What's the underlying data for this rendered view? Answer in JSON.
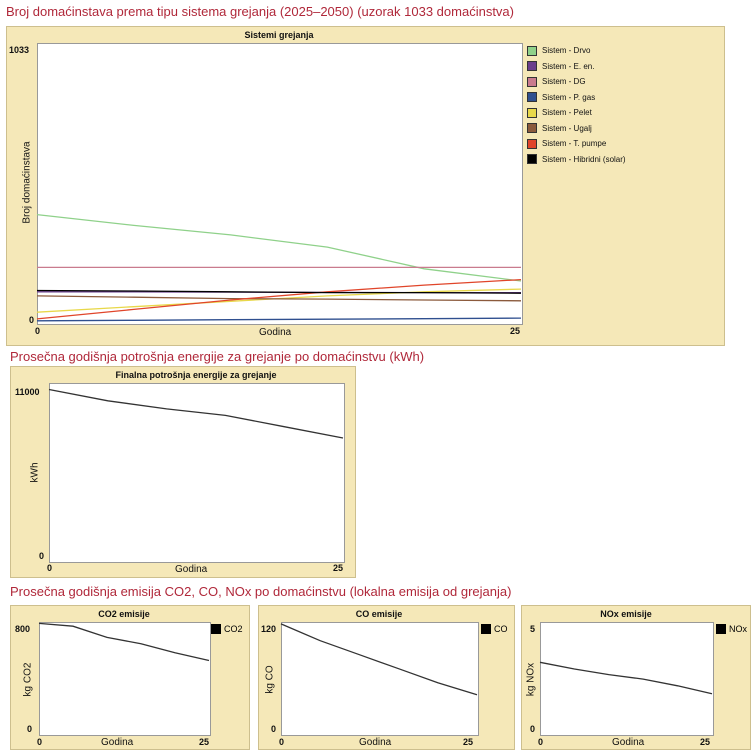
{
  "sections": {
    "s1_title": "Broj domaćinstava prema tipu sistema grejanja (2025–2050) (uzorak 1033 domaćinstva)",
    "s2_title": "Prosečna godišnja potrošnja energije za grejanje po domaćinstvu (kWh)",
    "s3_title": "Prosečna godišnja emisija CO2, CO, NOx po domaćinstvu (lokalna emisija od grejanja)"
  },
  "chart_data": [
    {
      "type": "line",
      "title": "Sistemi grejanja",
      "xlabel": "Godina",
      "ylabel": "Broj domaćinstava",
      "xlim": [
        0,
        25
      ],
      "ylim": [
        0,
        1033
      ],
      "xticks": [
        "0",
        "25"
      ],
      "yticks": [
        "0",
        "1033"
      ],
      "legend_position": "right",
      "series": [
        {
          "name": "Sistem - Drvo",
          "color": "#8fd18a",
          "x": [
            0,
            5,
            10,
            15,
            20,
            25
          ],
          "values": [
            400,
            360,
            325,
            280,
            200,
            155
          ]
        },
        {
          "name": "Sistem - E. en.",
          "color": "#6a3d8c",
          "x": [
            0,
            5,
            10,
            15,
            20,
            25
          ],
          "values": [
            115,
            115,
            114,
            113,
            112,
            112
          ]
        },
        {
          "name": "Sistem - DG",
          "color": "#c97b8e",
          "x": [
            0,
            5,
            10,
            15,
            20,
            25
          ],
          "values": [
            205,
            205,
            205,
            205,
            205,
            205
          ]
        },
        {
          "name": "Sistem - P. gas",
          "color": "#2f4f8f",
          "x": [
            0,
            5,
            10,
            15,
            20,
            25
          ],
          "values": [
            8,
            10,
            12,
            14,
            16,
            18
          ]
        },
        {
          "name": "Sistem - Pelet",
          "color": "#e8d84a",
          "x": [
            0,
            5,
            10,
            15,
            20,
            25
          ],
          "values": [
            40,
            60,
            80,
            100,
            115,
            125
          ]
        },
        {
          "name": "Sistem - Ugalj",
          "color": "#8b5a3c",
          "x": [
            0,
            5,
            10,
            15,
            20,
            25
          ],
          "values": [
            100,
            95,
            90,
            88,
            85,
            82
          ]
        },
        {
          "name": "Sistem - T. pumpe",
          "color": "#e0452a",
          "x": [
            0,
            5,
            10,
            15,
            20,
            25
          ],
          "values": [
            15,
            50,
            85,
            115,
            140,
            160
          ]
        },
        {
          "name": "Sistem - Hibridni (solar)",
          "color": "#000000",
          "x": [
            0,
            5,
            10,
            15,
            20,
            25
          ],
          "values": [
            120,
            118,
            115,
            112,
            112,
            110
          ]
        }
      ]
    },
    {
      "type": "line",
      "title": "Finalna potrošnja energije za grejanje",
      "xlabel": "Godina",
      "ylabel": "kWh",
      "xlim": [
        0,
        25
      ],
      "ylim": [
        0,
        11000
      ],
      "xticks": [
        "0",
        "25"
      ],
      "yticks": [
        "0",
        "11000"
      ],
      "series": [
        {
          "color": "#333333",
          "x": [
            0,
            5,
            10,
            15,
            20,
            25
          ],
          "values": [
            10600,
            9900,
            9400,
            9000,
            8300,
            7600
          ]
        }
      ]
    },
    {
      "type": "line",
      "title": "CO2 emisije",
      "xlabel": "Godina",
      "ylabel": "kg CO2",
      "xlim": [
        0,
        25
      ],
      "ylim": [
        0,
        800
      ],
      "xticks": [
        "0",
        "25"
      ],
      "yticks": [
        "0",
        "800"
      ],
      "legend": [
        "CO2"
      ],
      "series": [
        {
          "name": "CO2",
          "color": "#333333",
          "x": [
            0,
            5,
            10,
            15,
            20,
            25
          ],
          "values": [
            790,
            770,
            690,
            645,
            580,
            525
          ]
        }
      ]
    },
    {
      "type": "line",
      "title": "CO emisije",
      "xlabel": "Godina",
      "ylabel": "kg CO",
      "xlim": [
        0,
        25
      ],
      "ylim": [
        0,
        120
      ],
      "xticks": [
        "0",
        "25"
      ],
      "yticks": [
        "0",
        "120"
      ],
      "legend": [
        "CO"
      ],
      "series": [
        {
          "name": "CO",
          "color": "#333333",
          "x": [
            0,
            5,
            10,
            15,
            20,
            25
          ],
          "values": [
            118,
            100,
            85,
            70,
            55,
            42
          ]
        }
      ]
    },
    {
      "type": "line",
      "title": "NOx emisije",
      "xlabel": "Godina",
      "ylabel": "kg NOx",
      "xlim": [
        0,
        25
      ],
      "ylim": [
        0,
        5
      ],
      "xticks": [
        "0",
        "25"
      ],
      "yticks": [
        "0",
        "5"
      ],
      "legend": [
        "NOx"
      ],
      "series": [
        {
          "name": "NOx",
          "color": "#333333",
          "x": [
            0,
            5,
            10,
            15,
            20,
            25
          ],
          "values": [
            3.2,
            2.9,
            2.65,
            2.45,
            2.15,
            1.8
          ]
        }
      ]
    }
  ]
}
